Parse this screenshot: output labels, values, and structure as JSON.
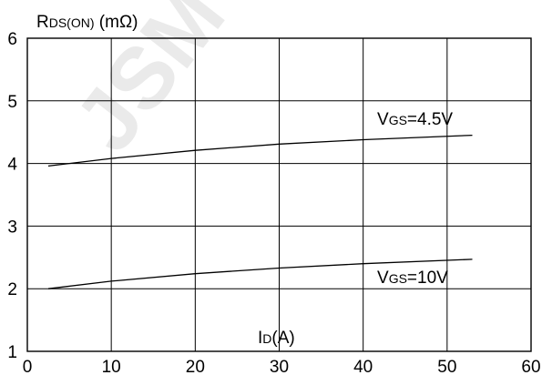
{
  "watermark": "JSM",
  "chart_data": {
    "type": "line",
    "ylabel": {
      "main": "R",
      "sub": "DS(ON)",
      "unit": " (mΩ)"
    },
    "xlabel": {
      "main": "I",
      "sub": "D",
      "unit": "(A)"
    },
    "xlim": [
      0,
      60
    ],
    "ylim": [
      1,
      6
    ],
    "xticks": [
      "0",
      "10",
      "20",
      "30",
      "40",
      "50",
      "60"
    ],
    "yticks": [
      "1",
      "2",
      "3",
      "4",
      "5",
      "6"
    ],
    "grid": true,
    "series": [
      {
        "name": "VGS=4.5V",
        "label": {
          "main": "V",
          "sub": "GS",
          "rest": "=4.5V"
        },
        "color": "#000000",
        "x": [
          2.5,
          10,
          20,
          30,
          40,
          53
        ],
        "y": [
          3.96,
          4.08,
          4.21,
          4.31,
          4.38,
          4.45
        ]
      },
      {
        "name": "VGS=10V",
        "label": {
          "main": "V",
          "sub": "GS",
          "rest": "=10V"
        },
        "color": "#000000",
        "x": [
          2.5,
          10,
          20,
          30,
          40,
          53
        ],
        "y": [
          2.0,
          2.12,
          2.24,
          2.33,
          2.4,
          2.47
        ]
      }
    ]
  }
}
